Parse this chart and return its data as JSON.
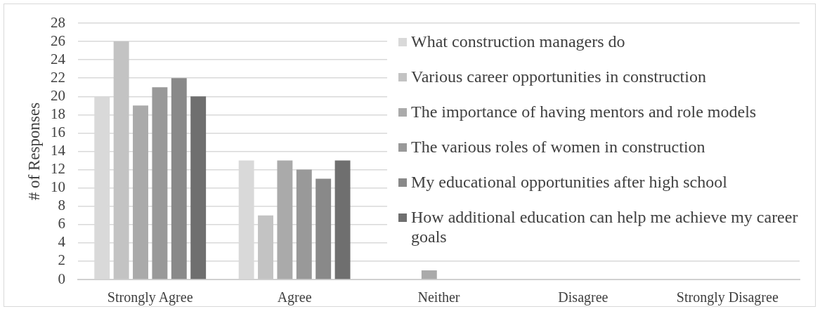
{
  "chart_data": {
    "type": "bar",
    "ylabel": "# of Responses",
    "categories": [
      "Strongly Agree",
      "Agree",
      "Neither",
      "Disagree",
      "Strongly Disagree"
    ],
    "series": [
      {
        "name": "What construction managers do",
        "color": "#d9d9d9",
        "values": [
          20,
          13,
          0,
          0,
          0
        ]
      },
      {
        "name": "Various career opportunities in construction",
        "color": "#c3c3c3",
        "values": [
          26,
          7,
          0,
          0,
          0
        ]
      },
      {
        "name": "The importance of having mentors and role models",
        "color": "#aaaaaa",
        "values": [
          19,
          13,
          1,
          0,
          0
        ]
      },
      {
        "name": "The various roles of women in construction",
        "color": "#999999",
        "values": [
          21,
          12,
          0,
          0,
          0
        ]
      },
      {
        "name": "My educational opportunities after high school",
        "color": "#898989",
        "values": [
          22,
          11,
          0,
          0,
          0
        ]
      },
      {
        "name": "How additional education can help me achieve my career goals",
        "color": "#6f6f6f",
        "values": [
          20,
          13,
          0,
          0,
          0
        ]
      }
    ],
    "ylim": [
      0,
      28
    ],
    "yticks": [
      0,
      2,
      4,
      6,
      8,
      10,
      12,
      14,
      16,
      18,
      20,
      22,
      24,
      26,
      28
    ],
    "grid": "y",
    "legend": "right"
  }
}
